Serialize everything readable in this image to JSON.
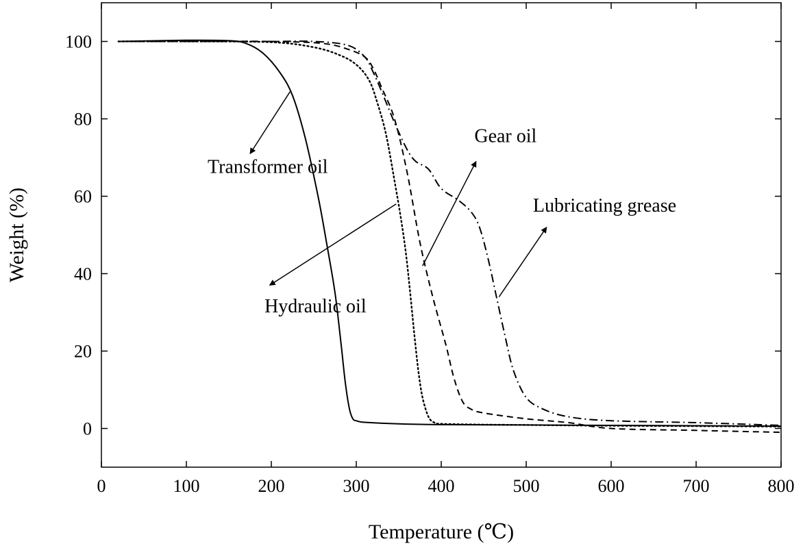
{
  "chart_data": {
    "type": "line",
    "title": "",
    "xlabel": "Temperature (℃)",
    "ylabel": "Weight (%)",
    "xlim": [
      0,
      800
    ],
    "ylim": [
      -10,
      110
    ],
    "xticks": [
      0,
      100,
      200,
      300,
      400,
      500,
      600,
      700,
      800
    ],
    "yticks": [
      0,
      20,
      40,
      60,
      80,
      100
    ],
    "grid": false,
    "legend": "none",
    "series": [
      {
        "name": "Transformer oil",
        "style": "solid",
        "color": "#000000",
        "x": [
          20,
          100,
          150,
          170,
          190,
          210,
          225,
          240,
          255,
          265,
          275,
          282,
          287,
          292,
          296,
          300,
          310,
          350,
          400,
          500,
          600,
          700,
          800
        ],
        "y": [
          100,
          100.3,
          100.2,
          99.5,
          97,
          92,
          86,
          75,
          60,
          48,
          35,
          22,
          12,
          5,
          2.5,
          2,
          1.6,
          1.2,
          1.0,
          0.9,
          0.8,
          0.7,
          0.6
        ]
      },
      {
        "name": "Hydraulic oil",
        "style": "dotted",
        "color": "#000000",
        "x": [
          20,
          100,
          200,
          250,
          280,
          300,
          315,
          325,
          335,
          345,
          352,
          358,
          363,
          368,
          373,
          378,
          385,
          392,
          400,
          450,
          500,
          600,
          700,
          800
        ],
        "y": [
          100,
          100,
          99.8,
          98.5,
          96.5,
          94,
          90,
          84,
          76,
          64,
          55,
          46,
          36,
          25,
          15,
          8,
          3,
          1.5,
          1.2,
          1.0,
          0.9,
          0.7,
          0.6,
          0.5
        ]
      },
      {
        "name": "Gear oil",
        "style": "dashed",
        "color": "#000000",
        "x": [
          20,
          100,
          200,
          260,
          290,
          310,
          320,
          330,
          345,
          360,
          375,
          390,
          405,
          415,
          425,
          435,
          450,
          500,
          550,
          600,
          700,
          800
        ],
        "y": [
          100,
          100,
          100,
          99.5,
          98,
          96,
          93,
          88,
          80,
          66,
          48,
          34,
          22,
          13,
          7,
          5,
          4,
          2.5,
          1.5,
          0,
          -0.5,
          -1
        ]
      },
      {
        "name": "Lubricating grease",
        "style": "dashdot",
        "color": "#000000",
        "x": [
          20,
          100,
          200,
          250,
          290,
          310,
          320,
          330,
          345,
          360,
          370,
          385,
          400,
          420,
          435,
          445,
          455,
          465,
          475,
          485,
          500,
          520,
          550,
          600,
          700,
          800
        ],
        "y": [
          100,
          100,
          100,
          100,
          99,
          96,
          92,
          87,
          79,
          72,
          69,
          67,
          62,
          59,
          56,
          52,
          44,
          34,
          24,
          15,
          8,
          5,
          3,
          2,
          1.5,
          0.8
        ]
      }
    ],
    "annotations": [
      {
        "text": "Transformer oil",
        "series": "Transformer oil",
        "tail": [
          222,
          87
        ],
        "head": [
          175,
          71
        ],
        "text_at": [
          125,
          66
        ]
      },
      {
        "text": "Hydraulic oil",
        "series": "Hydraulic oil",
        "tail": [
          347,
          58
        ],
        "head": [
          198,
          37
        ],
        "text_at": [
          192,
          30
        ]
      },
      {
        "text": "Gear oil",
        "series": "Gear oil",
        "tail": [
          378,
          42
        ],
        "head": [
          441,
          69
        ],
        "text_at": [
          439,
          74
        ]
      },
      {
        "text": "Lubricating grease",
        "series": "Lubricating grease",
        "tail": [
          468,
          34
        ],
        "head": [
          524,
          52
        ],
        "text_at": [
          508,
          56
        ]
      }
    ]
  }
}
